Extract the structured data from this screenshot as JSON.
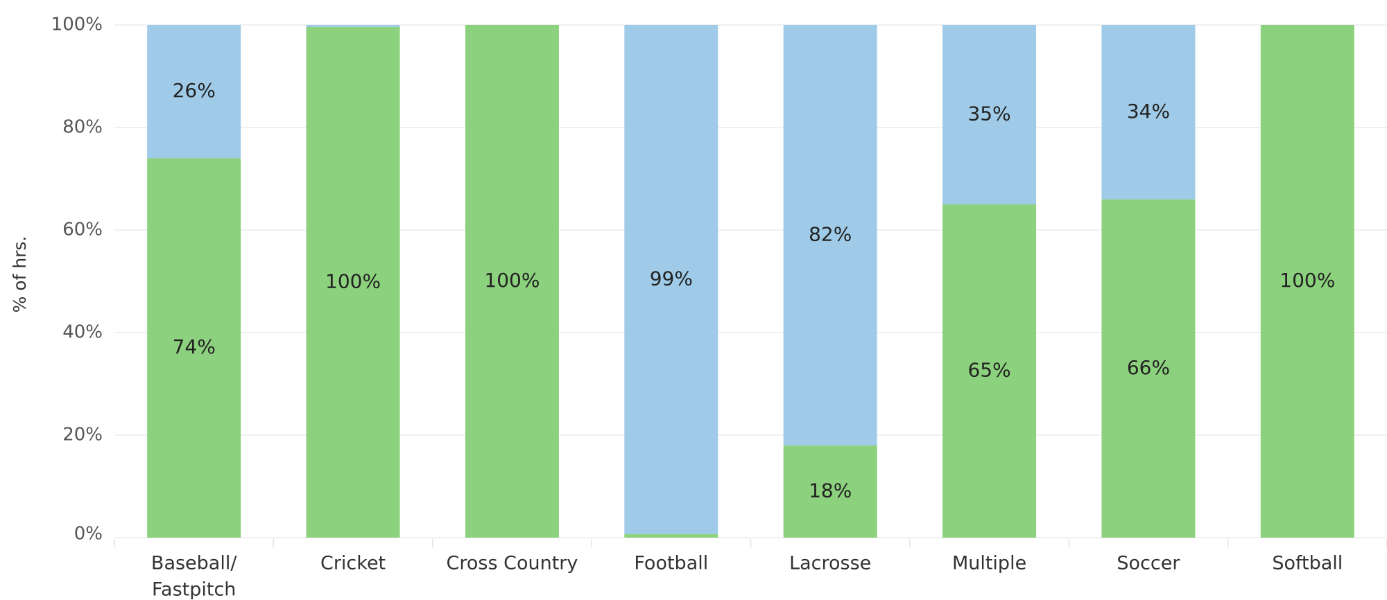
{
  "chart_data": {
    "type": "bar",
    "stacked": true,
    "normalized": true,
    "categories": [
      [
        "Baseball/",
        "Fastpitch"
      ],
      [
        "Cricket"
      ],
      [
        "Cross Country"
      ],
      [
        "Football"
      ],
      [
        "Lacrosse"
      ],
      [
        "Multiple"
      ],
      [
        "Soccer"
      ],
      [
        "Softball"
      ]
    ],
    "series": [
      {
        "color": "#8cd17d",
        "values": [
          74,
          99.6,
          100,
          0.7,
          18,
          65,
          66,
          100
        ],
        "labels": [
          "74%",
          "100%",
          "100%",
          "",
          "18%",
          "65%",
          "66%",
          "100%"
        ]
      },
      {
        "color": "#a0cbe8",
        "values": [
          26,
          0.4,
          0,
          99.3,
          82,
          35,
          34,
          0
        ],
        "labels": [
          "26%",
          "",
          "",
          "99%",
          "82%",
          "35%",
          "34%",
          ""
        ]
      }
    ],
    "ylabel": "% of hrs.",
    "ylim": [
      0,
      100
    ],
    "yticks": [
      0,
      20,
      40,
      60,
      80,
      100
    ],
    "ytick_labels": [
      "0%",
      "20%",
      "40%",
      "60%",
      "80%",
      "100%"
    ],
    "grid": true,
    "legend": "none"
  }
}
